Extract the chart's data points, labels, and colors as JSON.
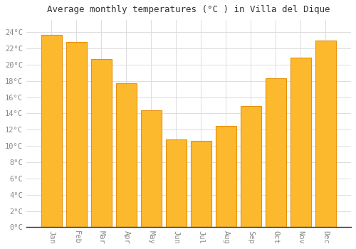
{
  "title": "Average monthly temperatures (°C ) in Villa del Dique",
  "months": [
    "Jan",
    "Feb",
    "Mar",
    "Apr",
    "May",
    "Jun",
    "Jul",
    "Aug",
    "Sep",
    "Oct",
    "Nov",
    "Dec"
  ],
  "values": [
    23.7,
    22.8,
    20.7,
    17.7,
    14.4,
    10.8,
    10.6,
    12.5,
    14.9,
    18.3,
    20.9,
    23.0
  ],
  "bar_color": "#FDB92E",
  "bar_edge_color": "#E8900A",
  "background_color": "#FFFFFF",
  "grid_color": "#DDDDDD",
  "tick_label_color": "#888888",
  "title_color": "#333333",
  "ylim": [
    0,
    25.5
  ],
  "yticks": [
    0,
    2,
    4,
    6,
    8,
    10,
    12,
    14,
    16,
    18,
    20,
    22,
    24
  ]
}
